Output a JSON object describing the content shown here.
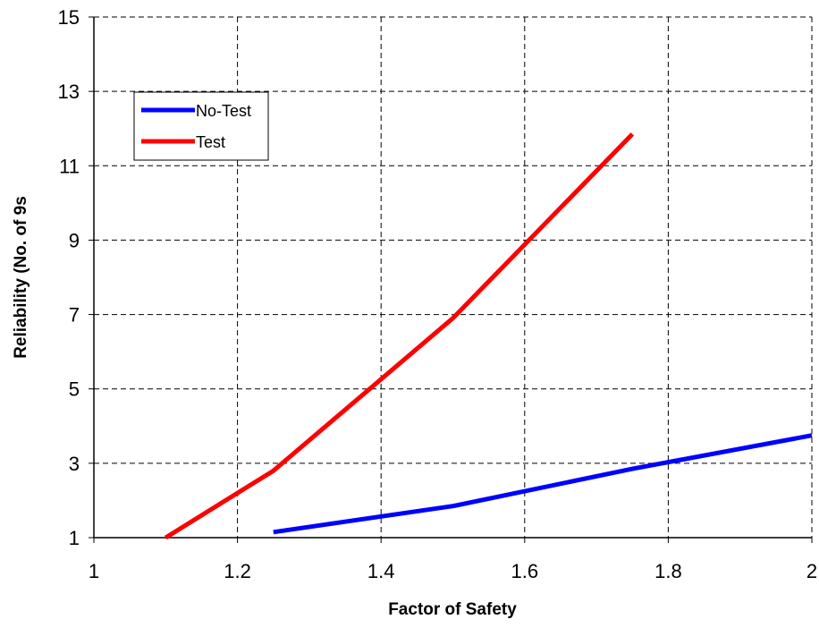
{
  "chart_data": {
    "type": "line",
    "title": "",
    "xlabel": "Factor of Safety",
    "ylabel": "Reliability (No. of 9s",
    "xlim": [
      1,
      2
    ],
    "ylim": [
      1,
      15
    ],
    "x_ticks": [
      "1",
      "1.2",
      "1.4",
      "1.6",
      "1.8",
      "2"
    ],
    "y_ticks": [
      "1",
      "3",
      "5",
      "7",
      "9",
      "11",
      "13",
      "15"
    ],
    "grid": true,
    "legend_position": "top-left",
    "series": [
      {
        "name": "No-Test",
        "color": "#0000FF",
        "points": [
          [
            1.25,
            1.15
          ],
          [
            1.5,
            1.85
          ],
          [
            1.75,
            2.85
          ],
          [
            2.0,
            3.75
          ]
        ]
      },
      {
        "name": "Test",
        "color": "#FF0000",
        "points": [
          [
            1.1,
            1.0
          ],
          [
            1.25,
            2.8
          ],
          [
            1.5,
            6.9
          ],
          [
            1.75,
            11.85
          ]
        ]
      }
    ]
  }
}
